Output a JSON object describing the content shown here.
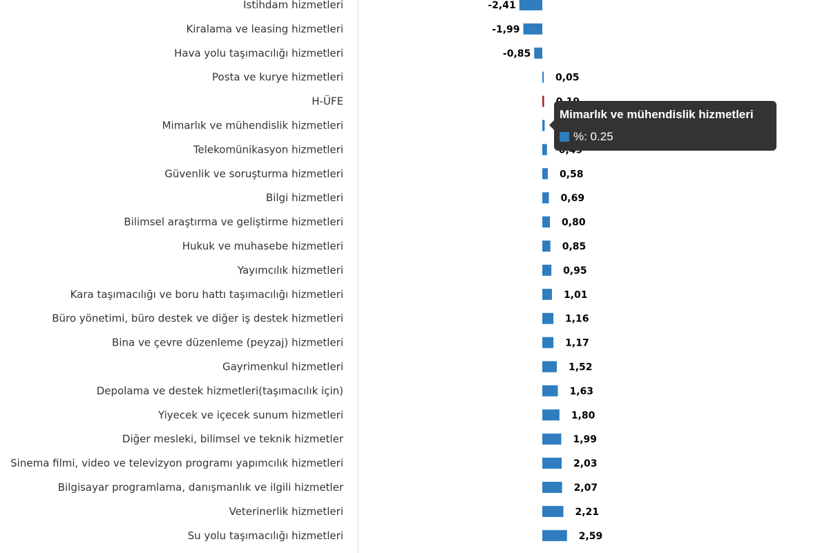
{
  "chart_data": {
    "type": "bar",
    "orientation": "horizontal",
    "series": [
      {
        "values": [
          -2.41,
          -1.99,
          -0.85,
          0.05,
          0.19,
          0.25,
          0.49,
          0.58,
          0.69,
          0.8,
          0.85,
          0.95,
          1.01,
          1.16,
          1.17,
          1.52,
          1.63,
          1.8,
          1.99,
          2.03,
          2.07,
          2.21,
          2.59
        ],
        "value_labels": [
          "-2,41",
          "-1,99",
          "-0,85",
          "0,05",
          "0,19",
          "0,25",
          "0,49",
          "0,58",
          "0,69",
          "0,80",
          "0,85",
          "0,95",
          "1,01",
          "1,16",
          "1,17",
          "1,52",
          "1,63",
          "1,80",
          "1,99",
          "2,03",
          "2,07",
          "2,21",
          "2,59"
        ]
      }
    ],
    "categories": [
      "İstihdam hizmetleri",
      "Kiralama ve leasing hizmetleri",
      "Hava yolu taşımacılığı hizmetleri",
      "Posta ve kurye hizmetleri",
      "H-ÜFE",
      "Mimarlık ve mühendislik hizmetleri",
      "Telekomünikasyon hizmetleri",
      "Güvenlik ve soruşturma hizmetleri",
      "Bilgi hizmetleri",
      "Bilimsel araştırma ve geliştirme hizmetleri",
      "Hukuk ve muhasebe hizmetleri",
      "Yayımcılık hizmetleri",
      "Kara taşımacılığı ve boru hattı taşımacılığı hizmetleri",
      "Büro yönetimi, büro destek ve diğer iş destek hizmetleri",
      "Bina ve çevre düzenleme (peyzaj) hizmetleri",
      "Gayrimenkul hizmetleri",
      "Depolama ve destek hizmetleri(taşımacılık için)",
      "Yiyecek ve içecek sunum hizmetleri",
      "Diğer mesleki, bilimsel ve teknik hizmetler",
      "Sinema filmi, video ve televizyon programı yapımcılık hizmetleri",
      "Bilgisayar programlama, danışmanlık ve ilgili hizmetler",
      "Veterinerlik hizmetleri",
      "Su yolu taşımacılığı hizmetleri"
    ],
    "highlight_category": "H-ÜFE",
    "colors": {
      "bar": "#2f7dbf",
      "highlight": "#b5232f",
      "axis": "#dddddd"
    },
    "tooltip": {
      "title": "Mimarlık ve mühendislik hizmetleri",
      "series_label": "%: 0.25"
    }
  }
}
